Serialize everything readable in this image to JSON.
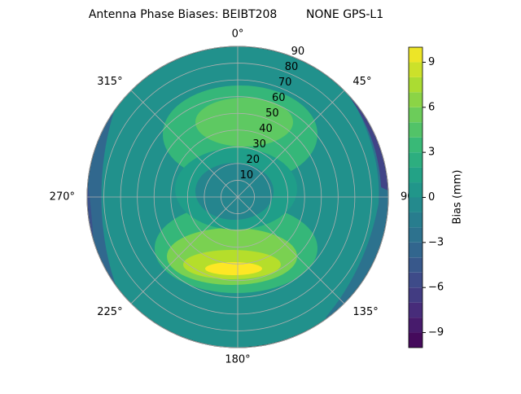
{
  "chart_data": {
    "type": "polar_contour",
    "title": "Antenna Phase Biases: BEIBT208        NONE GPS-L1",
    "colorbar_label": "Bias (mm)",
    "colormap": "viridis",
    "levels": [
      -10,
      -9,
      -8,
      -7,
      -6,
      -5,
      -4,
      -3,
      -2,
      -1,
      0,
      1,
      2,
      3,
      4,
      5,
      6,
      7,
      8,
      9,
      10
    ],
    "clim": [
      -10,
      10
    ],
    "cticks": [
      {
        "value": -9,
        "label": "−9"
      },
      {
        "value": -6,
        "label": "−6"
      },
      {
        "value": -3,
        "label": "−3"
      },
      0,
      3,
      6,
      9
    ],
    "rlim": [
      0,
      90
    ],
    "rticks": [
      10,
      20,
      30,
      40,
      50,
      60,
      70,
      80,
      90
    ],
    "thetaticks": [
      {
        "value": 0,
        "label": "0°"
      },
      {
        "value": 45,
        "label": "45°"
      },
      {
        "value": 90,
        "label": "90°"
      },
      {
        "value": 135,
        "label": "135°"
      },
      {
        "value": 180,
        "label": "180°"
      },
      {
        "value": 225,
        "label": "225°"
      },
      {
        "value": 270,
        "label": "270°"
      },
      {
        "value": 315,
        "label": "315°"
      }
    ],
    "grid": true
  }
}
